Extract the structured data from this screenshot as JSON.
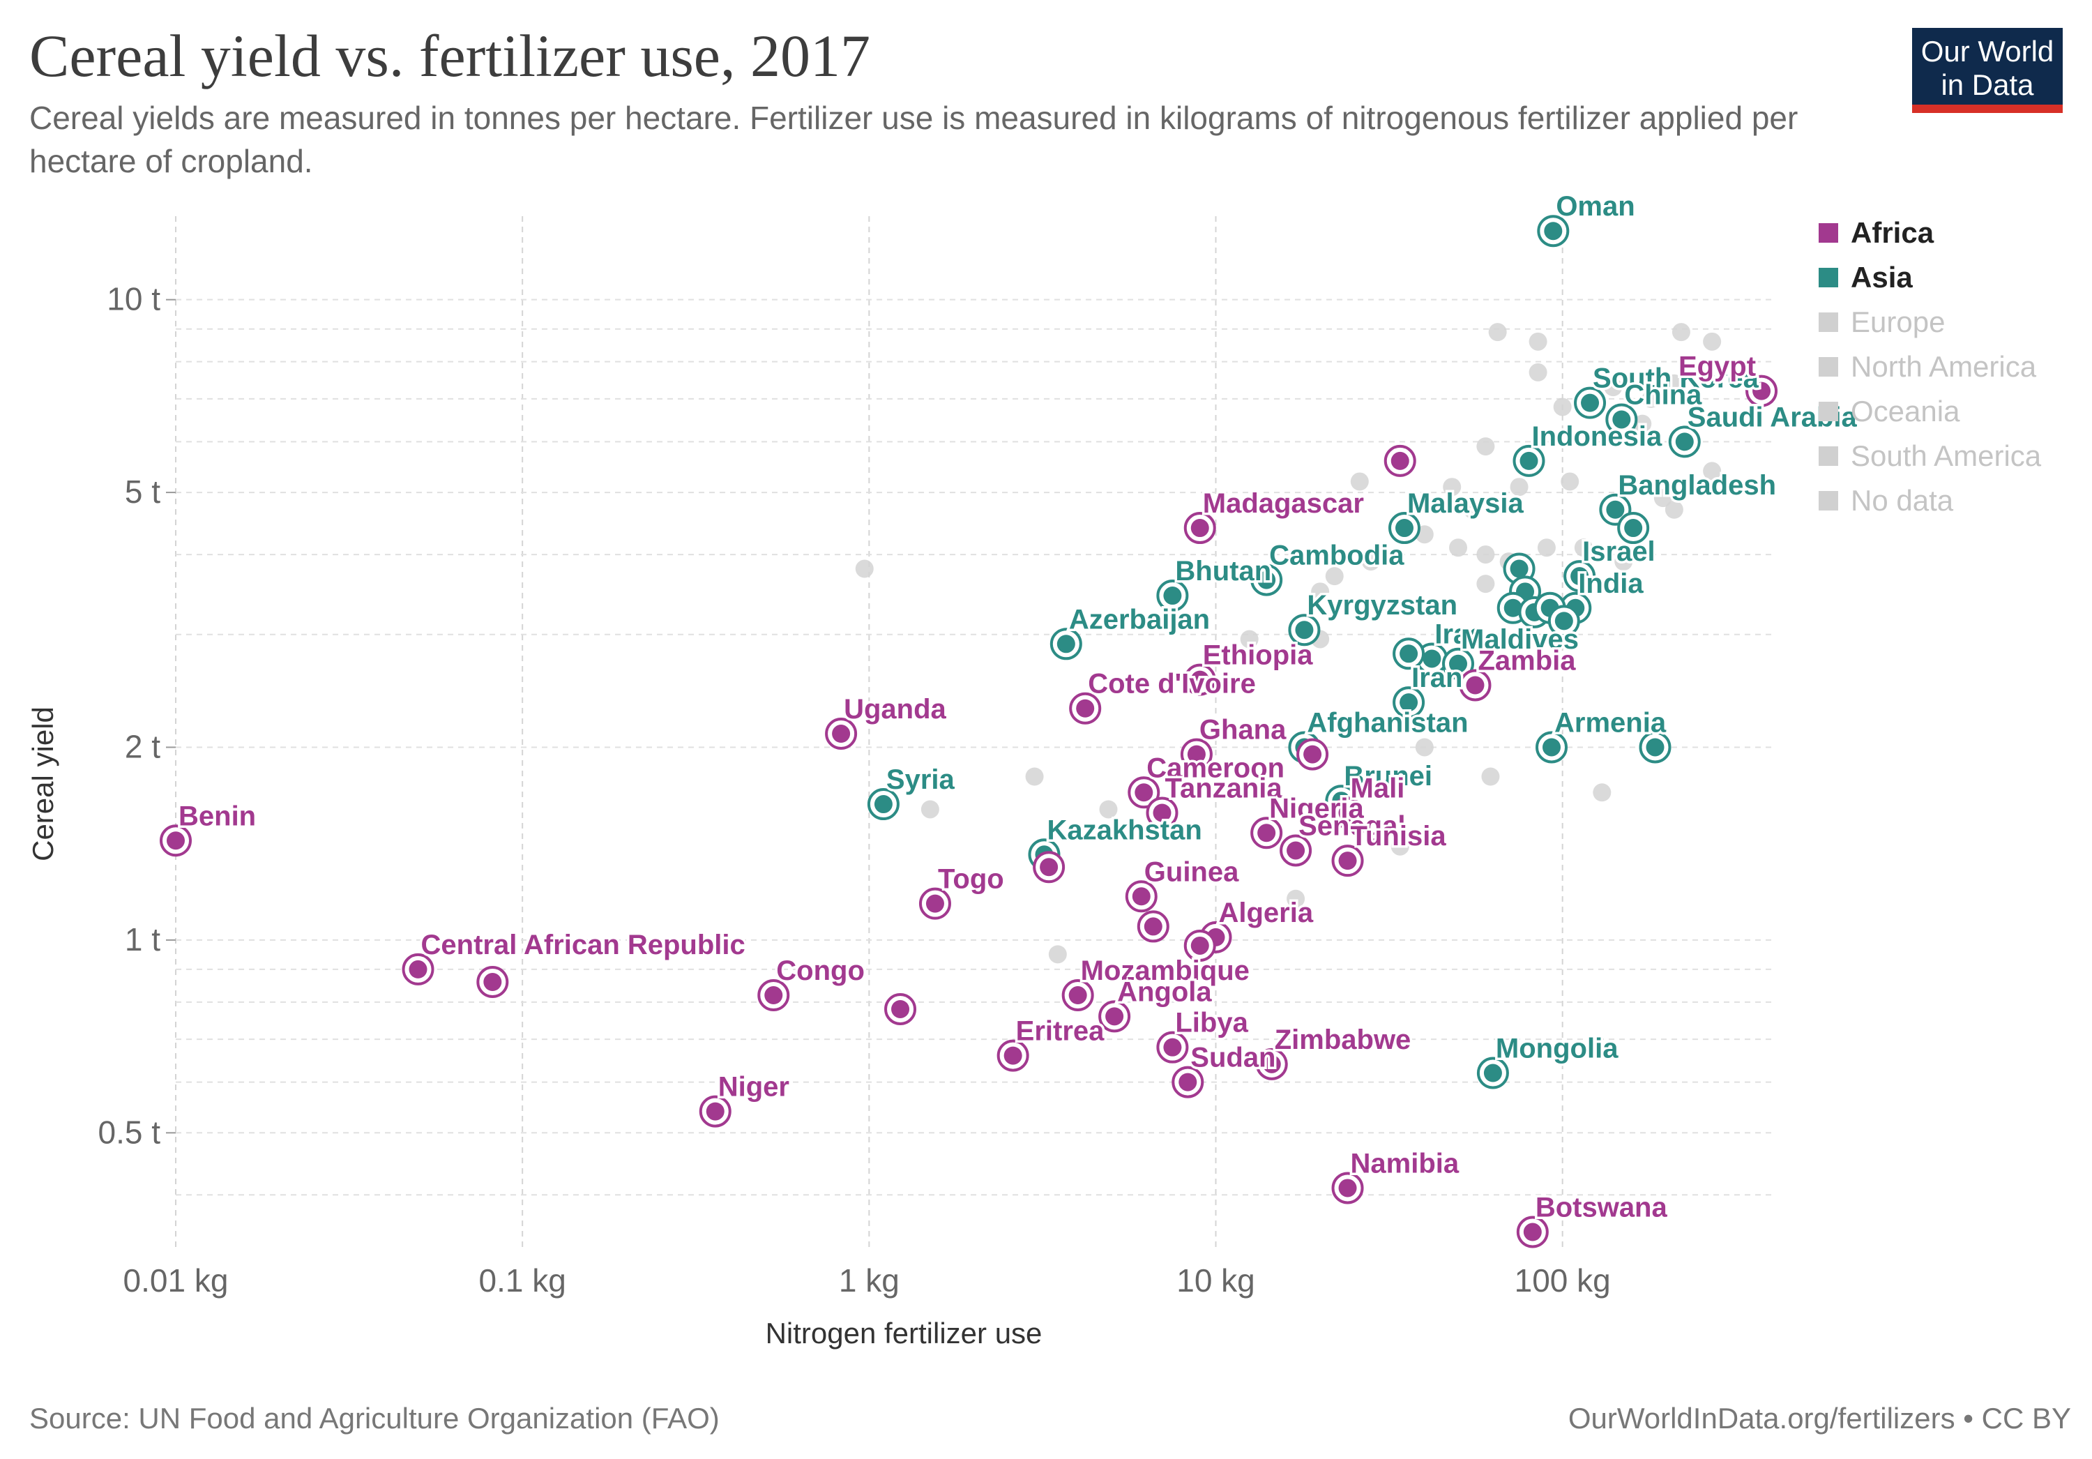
{
  "header": {
    "title": "Cereal yield vs. fertilizer use, 2017",
    "subtitle": "Cereal yields are measured in tonnes per hectare. Fertilizer use is measured in kilograms of nitrogenous fertilizer applied per hectare of cropland."
  },
  "logo": {
    "line1": "Our World",
    "line2": "in Data"
  },
  "footer": {
    "source": "Source: UN Food and Agriculture Organization (FAO)",
    "link": "OurWorldInData.org/fertilizers • CC BY"
  },
  "legend": [
    {
      "label": "Africa",
      "color": "#a2398f",
      "active": true
    },
    {
      "label": "Asia",
      "color": "#2c8c85",
      "active": true
    },
    {
      "label": "Europe",
      "color": "#d0d0d0",
      "active": false
    },
    {
      "label": "North America",
      "color": "#d0d0d0",
      "active": false
    },
    {
      "label": "Oceania",
      "color": "#d0d0d0",
      "active": false
    },
    {
      "label": "South America",
      "color": "#d0d0d0",
      "active": false
    },
    {
      "label": "No data",
      "color": "#d0d0d0",
      "active": false
    }
  ],
  "chart_data": {
    "type": "scatter",
    "title": "Cereal yield vs. fertilizer use, 2017",
    "xlabel": "Nitrogen fertilizer use",
    "ylabel": "Cereal yield",
    "xscale": "log",
    "yscale": "log",
    "xlim": [
      0.01,
      400
    ],
    "ylim": [
      0.33,
      13.5
    ],
    "xticks": [
      {
        "value": 0.01,
        "label": "0.01 kg"
      },
      {
        "value": 0.1,
        "label": "0.1 kg"
      },
      {
        "value": 1,
        "label": "1 kg"
      },
      {
        "value": 10,
        "label": "10 kg"
      },
      {
        "value": 100,
        "label": "100 kg"
      }
    ],
    "yticks": [
      {
        "value": 0.5,
        "label": "0.5 t"
      },
      {
        "value": 1,
        "label": "1 t"
      },
      {
        "value": 2,
        "label": "2 t"
      },
      {
        "value": 5,
        "label": "5 t"
      },
      {
        "value": 10,
        "label": "10 t"
      }
    ],
    "colors": {
      "Africa": "#a2398f",
      "Asia": "#2c8c85",
      "Other": "#d3d3d3"
    },
    "series": [
      {
        "name": "Africa",
        "points": [
          {
            "label": "Egypt",
            "x": 375,
            "y": 7.2
          },
          {
            "label": "Madagascar",
            "x": 9,
            "y": 4.4
          },
          {
            "label": "Ethiopia",
            "x": 9,
            "y": 2.55
          },
          {
            "label": "Cote d'Ivoire",
            "x": 4.2,
            "y": 2.3
          },
          {
            "label": "Uganda",
            "x": 0.83,
            "y": 2.1
          },
          {
            "label": "Zambia",
            "x": 56,
            "y": 2.5
          },
          {
            "label": "Ghana",
            "x": 8.8,
            "y": 1.95
          },
          {
            "label": "Cameroon",
            "x": 6.2,
            "y": 1.7
          },
          {
            "label": "Tanzania",
            "x": 7,
            "y": 1.58
          },
          {
            "label": "Mali",
            "x": 24,
            "y": 1.58
          },
          {
            "label": "Nigeria",
            "x": 14,
            "y": 1.47
          },
          {
            "label": "Senegal",
            "x": 17,
            "y": 1.38
          },
          {
            "label": "Tunisia",
            "x": 24,
            "y": 1.33
          },
          {
            "label": "Benin",
            "x": 0.01,
            "y": 1.43
          },
          {
            "label": "Togo",
            "x": 1.55,
            "y": 1.14
          },
          {
            "label": "Guinea",
            "x": 6.1,
            "y": 1.17
          },
          {
            "label": "Algeria",
            "x": 10,
            "y": 1.01
          },
          {
            "label": "Central African Republic",
            "x": 0.05,
            "y": 0.9
          },
          {
            "label": "Congo",
            "x": 0.53,
            "y": 0.82
          },
          {
            "label": "Mozambique",
            "x": 4,
            "y": 0.82
          },
          {
            "label": "Angola",
            "x": 5.1,
            "y": 0.76
          },
          {
            "label": "Eritrea",
            "x": 2.6,
            "y": 0.66
          },
          {
            "label": "Libya",
            "x": 7.5,
            "y": 0.68
          },
          {
            "label": "Sudan",
            "x": 8.3,
            "y": 0.6
          },
          {
            "label": "Zimbabwe",
            "x": 14.5,
            "y": 0.64
          },
          {
            "label": "Niger",
            "x": 0.36,
            "y": 0.54
          },
          {
            "label": "Namibia",
            "x": 24,
            "y": 0.41
          },
          {
            "label": "Botswana",
            "x": 82,
            "y": 0.35
          },
          {
            "label": "",
            "x": 34,
            "y": 5.6
          },
          {
            "label": "",
            "x": 0.082,
            "y": 0.86
          },
          {
            "label": "",
            "x": 1.23,
            "y": 0.78
          },
          {
            "label": "",
            "x": 3.3,
            "y": 1.3
          },
          {
            "label": "",
            "x": 6.6,
            "y": 1.05
          },
          {
            "label": "",
            "x": 9,
            "y": 0.98
          },
          {
            "label": "",
            "x": 19,
            "y": 1.95
          }
        ]
      },
      {
        "name": "Asia",
        "points": [
          {
            "label": "Oman",
            "x": 94,
            "y": 12.8
          },
          {
            "label": "South Korea",
            "x": 120,
            "y": 6.9
          },
          {
            "label": "China",
            "x": 148,
            "y": 6.5
          },
          {
            "label": "Saudi Arabia",
            "x": 225,
            "y": 6.0
          },
          {
            "label": "Indonesia",
            "x": 80,
            "y": 5.6
          },
          {
            "label": "Bangladesh",
            "x": 142,
            "y": 4.7
          },
          {
            "label": "Malaysia",
            "x": 35,
            "y": 4.4
          },
          {
            "label": "Cambodia",
            "x": 14,
            "y": 3.65
          },
          {
            "label": "Bhutan",
            "x": 7.5,
            "y": 3.45
          },
          {
            "label": "Israel",
            "x": 112,
            "y": 3.7
          },
          {
            "label": "India",
            "x": 109,
            "y": 3.3
          },
          {
            "label": "Kyrgyzstan",
            "x": 18,
            "y": 3.05
          },
          {
            "label": "Azerbaijan",
            "x": 3.7,
            "y": 2.9
          },
          {
            "label": "Iraq",
            "x": 42,
            "y": 2.75
          },
          {
            "label": "Maldives",
            "x": 50,
            "y": 2.7
          },
          {
            "label": "Iran",
            "x": 36,
            "y": 2.35
          },
          {
            "label": "Afghanistan",
            "x": 18,
            "y": 2.0
          },
          {
            "label": "Armenia",
            "x": 93,
            "y": 2.0
          },
          {
            "label": "Brunei",
            "x": 23,
            "y": 1.65
          },
          {
            "label": "Syria",
            "x": 1.1,
            "y": 1.63
          },
          {
            "label": "Kazakhstan",
            "x": 3.2,
            "y": 1.36
          },
          {
            "label": "Mongolia",
            "x": 63,
            "y": 0.62
          },
          {
            "label": "",
            "x": 75,
            "y": 3.8
          },
          {
            "label": "",
            "x": 78,
            "y": 3.5
          },
          {
            "label": "",
            "x": 72,
            "y": 3.3
          },
          {
            "label": "",
            "x": 83,
            "y": 3.25
          },
          {
            "label": "",
            "x": 92,
            "y": 3.3
          },
          {
            "label": "",
            "x": 101,
            "y": 3.15
          },
          {
            "label": "",
            "x": 160,
            "y": 4.4
          },
          {
            "label": "",
            "x": 185,
            "y": 2.0
          },
          {
            "label": "",
            "x": 36,
            "y": 2.8
          }
        ]
      },
      {
        "name": "Other",
        "points": [
          {
            "label": "",
            "x": 65,
            "y": 8.9
          },
          {
            "label": "",
            "x": 85,
            "y": 8.6
          },
          {
            "label": "",
            "x": 85,
            "y": 7.7
          },
          {
            "label": "",
            "x": 220,
            "y": 8.9
          },
          {
            "label": "",
            "x": 270,
            "y": 8.6
          },
          {
            "label": "",
            "x": 140,
            "y": 7.3
          },
          {
            "label": "",
            "x": 180,
            "y": 7.0
          },
          {
            "label": "",
            "x": 210,
            "y": 7.4
          },
          {
            "label": "",
            "x": 100,
            "y": 6.8
          },
          {
            "label": "",
            "x": 170,
            "y": 6.4
          },
          {
            "label": "",
            "x": 270,
            "y": 5.4
          },
          {
            "label": "",
            "x": 195,
            "y": 4.9
          },
          {
            "label": "",
            "x": 210,
            "y": 4.7
          },
          {
            "label": "",
            "x": 60,
            "y": 5.9
          },
          {
            "label": "",
            "x": 75,
            "y": 5.1
          },
          {
            "label": "",
            "x": 105,
            "y": 5.2
          },
          {
            "label": "",
            "x": 48,
            "y": 5.1
          },
          {
            "label": "",
            "x": 55,
            "y": 4.7
          },
          {
            "label": "",
            "x": 40,
            "y": 4.3
          },
          {
            "label": "",
            "x": 50,
            "y": 4.1
          },
          {
            "label": "",
            "x": 60,
            "y": 4.0
          },
          {
            "label": "",
            "x": 70,
            "y": 3.9
          },
          {
            "label": "",
            "x": 90,
            "y": 4.1
          },
          {
            "label": "",
            "x": 115,
            "y": 4.1
          },
          {
            "label": "",
            "x": 60,
            "y": 3.6
          },
          {
            "label": "",
            "x": 150,
            "y": 3.9
          },
          {
            "label": "",
            "x": 26,
            "y": 5.2
          },
          {
            "label": "",
            "x": 28,
            "y": 3.9
          },
          {
            "label": "",
            "x": 22,
            "y": 3.7
          },
          {
            "label": "",
            "x": 20,
            "y": 3.5
          },
          {
            "label": "",
            "x": 12.5,
            "y": 2.95
          },
          {
            "label": "",
            "x": 20,
            "y": 2.95
          },
          {
            "label": "",
            "x": 40,
            "y": 2.0
          },
          {
            "label": "",
            "x": 62,
            "y": 1.8
          },
          {
            "label": "",
            "x": 130,
            "y": 1.7
          },
          {
            "label": "",
            "x": 4.9,
            "y": 1.6
          },
          {
            "label": "",
            "x": 3.0,
            "y": 1.8
          },
          {
            "label": "",
            "x": 1.5,
            "y": 1.6
          },
          {
            "label": "",
            "x": 0.97,
            "y": 3.8
          },
          {
            "label": "",
            "x": 17,
            "y": 1.16
          },
          {
            "label": "",
            "x": 3.5,
            "y": 0.95
          },
          {
            "label": "",
            "x": 34,
            "y": 1.4
          }
        ]
      }
    ]
  }
}
